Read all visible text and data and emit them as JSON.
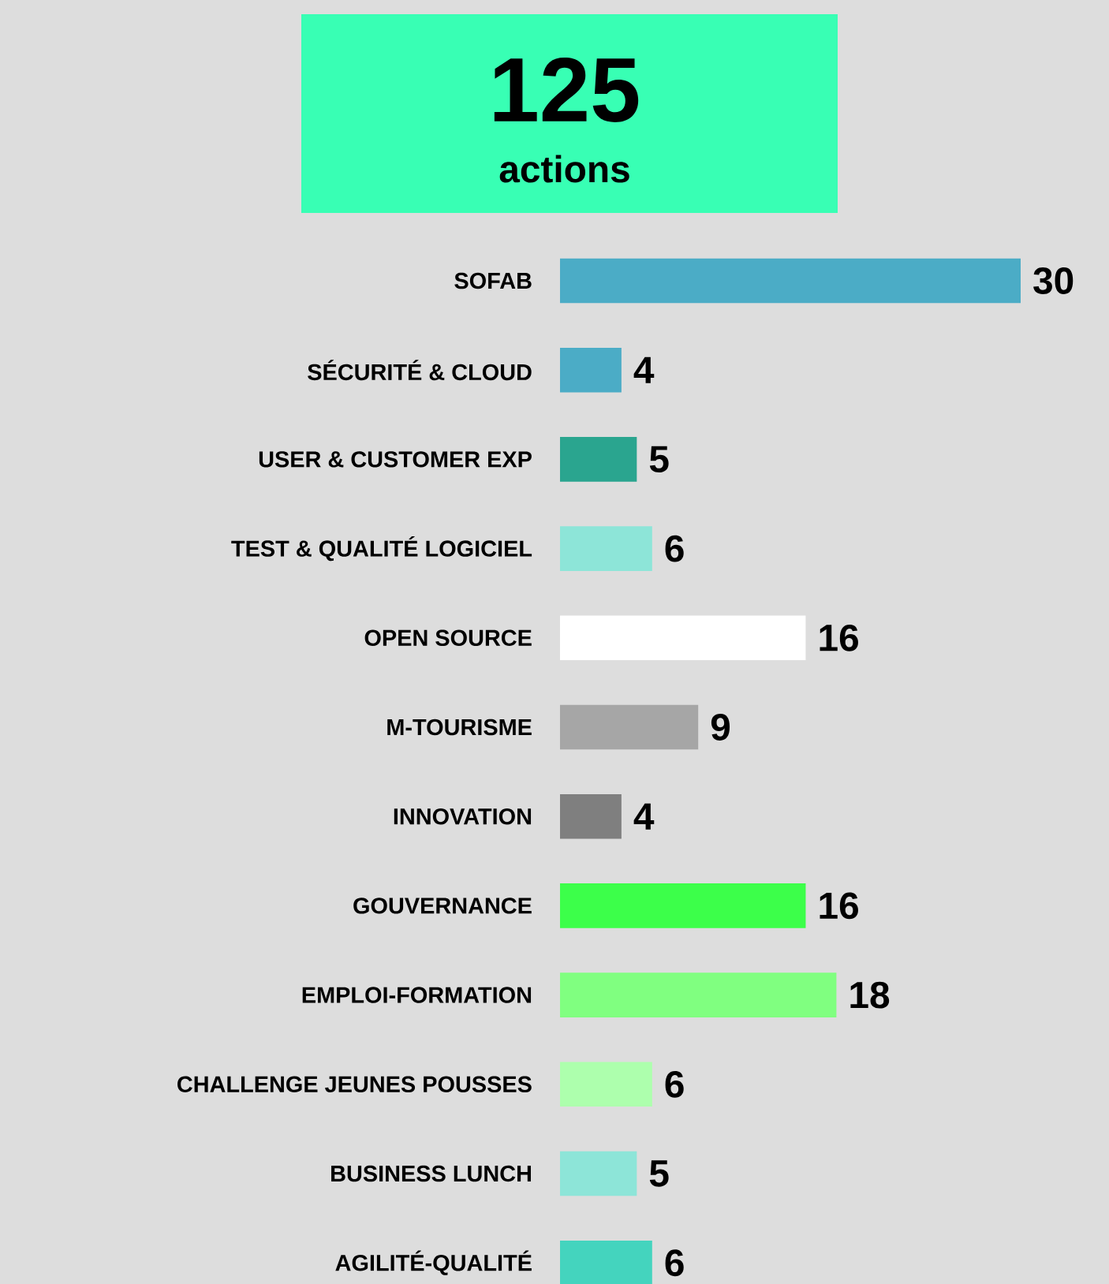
{
  "chart_data": {
    "type": "bar",
    "orientation": "horizontal",
    "title": "125",
    "subtitle": "actions",
    "categories": [
      "SOFAB",
      "SÉCURITÉ & CLOUD",
      "USER & CUSTOMER  EXP",
      "TEST & QUALITÉ LOGICIEL",
      "OPEN SOURCE",
      "M-TOURISME",
      "INNOVATION",
      "GOUVERNANCE",
      "EMPLOI-FORMATION",
      "CHALLENGE JEUNES POUSSES",
      "BUSINESS LUNCH",
      "AGILITÉ-QUALITÉ"
    ],
    "values": [
      30,
      4,
      5,
      6,
      16,
      9,
      4,
      16,
      18,
      6,
      5,
      6
    ],
    "colors": [
      "#4bacc6",
      "#4bacc6",
      "#2aa58f",
      "#8de5d8",
      "#ffffff",
      "#a6a6a6",
      "#7f7f7f",
      "#3cff4a",
      "#80ff80",
      "#adffad",
      "#8de5d8",
      "#44d4be"
    ],
    "data_labels": true
  }
}
